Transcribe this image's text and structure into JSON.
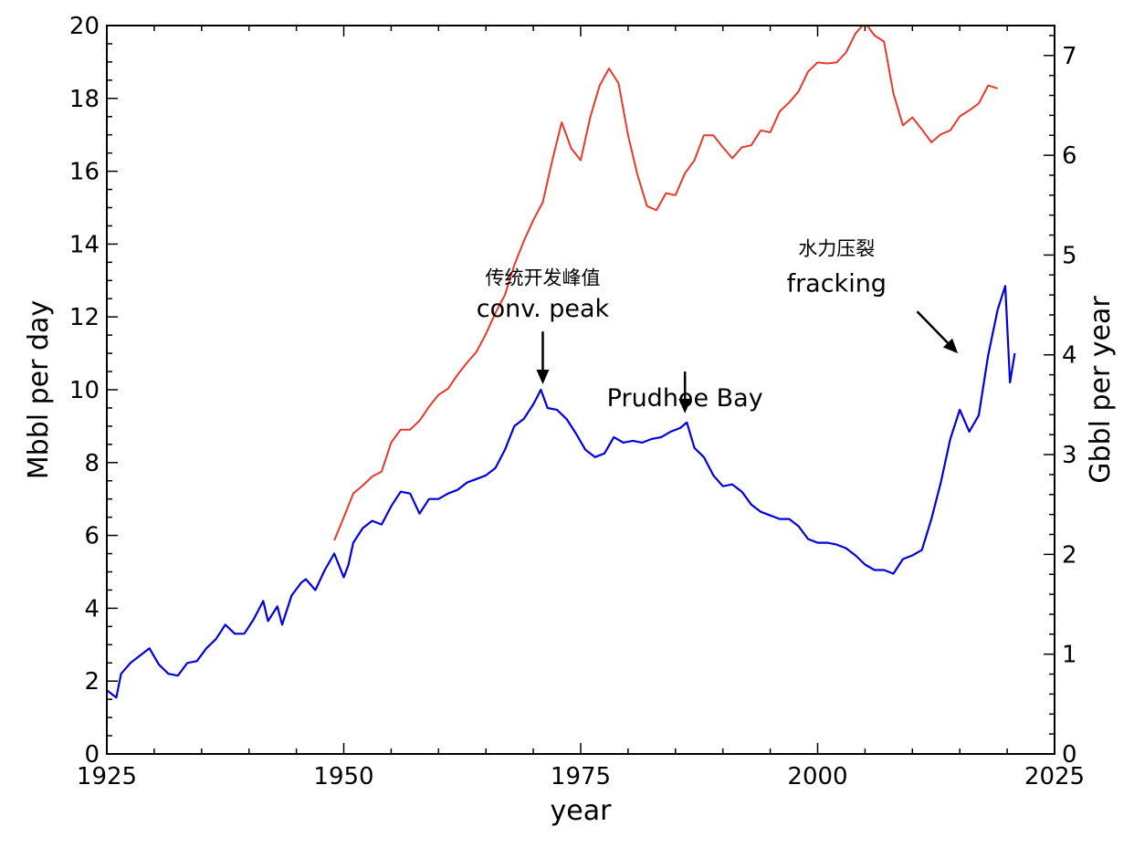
{
  "chart_data": {
    "type": "line",
    "title": "",
    "xlabel": "year",
    "ylabel_left": "Mbbl per day",
    "ylabel_right": "Gbbl per year",
    "xlim": [
      1925,
      2025
    ],
    "ylim_left": [
      0,
      20
    ],
    "ylim_right": [
      0,
      7.3
    ],
    "x_ticks": [
      1925,
      1950,
      1975,
      2000,
      2025
    ],
    "y_ticks_left": [
      0,
      2,
      4,
      6,
      8,
      10,
      12,
      14,
      16,
      18,
      20
    ],
    "y_ticks_right": [
      0,
      1,
      2,
      3,
      4,
      5,
      6,
      7
    ],
    "grid": false,
    "series": [
      {
        "axis": "left",
        "color": "#0000dd",
        "points": [
          [
            1925,
            1.75
          ],
          [
            1926,
            1.55
          ],
          [
            1926.5,
            2.2
          ],
          [
            1927.5,
            2.5
          ],
          [
            1928.5,
            2.7
          ],
          [
            1929.5,
            2.9
          ],
          [
            1930.5,
            2.45
          ],
          [
            1931.5,
            2.2
          ],
          [
            1932.5,
            2.15
          ],
          [
            1933.5,
            2.5
          ],
          [
            1934.5,
            2.55
          ],
          [
            1935.5,
            2.9
          ],
          [
            1936.5,
            3.15
          ],
          [
            1937.5,
            3.55
          ],
          [
            1938.5,
            3.3
          ],
          [
            1939.5,
            3.3
          ],
          [
            1940,
            3.5
          ],
          [
            1940.5,
            3.7
          ],
          [
            1941.5,
            4.2
          ],
          [
            1942,
            3.65
          ],
          [
            1943,
            4.05
          ],
          [
            1943.5,
            3.55
          ],
          [
            1944.5,
            4.35
          ],
          [
            1945.5,
            4.7
          ],
          [
            1946,
            4.8
          ],
          [
            1947,
            4.5
          ],
          [
            1948,
            5.05
          ],
          [
            1949,
            5.5
          ],
          [
            1950,
            4.85
          ],
          [
            1950.5,
            5.2
          ],
          [
            1951,
            5.8
          ],
          [
            1952,
            6.2
          ],
          [
            1953,
            6.4
          ],
          [
            1954,
            6.3
          ],
          [
            1955,
            6.8
          ],
          [
            1956,
            7.2
          ],
          [
            1957,
            7.15
          ],
          [
            1958,
            6.6
          ],
          [
            1959,
            7.0
          ],
          [
            1960,
            7.0
          ],
          [
            1961,
            7.15
          ],
          [
            1962,
            7.25
          ],
          [
            1963,
            7.45
          ],
          [
            1964,
            7.55
          ],
          [
            1965,
            7.65
          ],
          [
            1966,
            7.85
          ],
          [
            1967,
            8.35
          ],
          [
            1968,
            9.0
          ],
          [
            1969,
            9.2
          ],
          [
            1970,
            9.6
          ],
          [
            1970.8,
            10.0
          ],
          [
            1971.5,
            9.5
          ],
          [
            1972.5,
            9.45
          ],
          [
            1973.5,
            9.2
          ],
          [
            1974.5,
            8.8
          ],
          [
            1975.5,
            8.35
          ],
          [
            1976.5,
            8.15
          ],
          [
            1977.5,
            8.25
          ],
          [
            1978.5,
            8.7
          ],
          [
            1979.5,
            8.55
          ],
          [
            1980.5,
            8.6
          ],
          [
            1981.5,
            8.55
          ],
          [
            1982.5,
            8.65
          ],
          [
            1983.5,
            8.7
          ],
          [
            1984.5,
            8.85
          ],
          [
            1985.5,
            8.95
          ],
          [
            1986.2,
            9.1
          ],
          [
            1987,
            8.4
          ],
          [
            1988,
            8.15
          ],
          [
            1989,
            7.65
          ],
          [
            1990,
            7.35
          ],
          [
            1991,
            7.4
          ],
          [
            1992,
            7.2
          ],
          [
            1993,
            6.85
          ],
          [
            1994,
            6.65
          ],
          [
            1995,
            6.55
          ],
          [
            1996,
            6.45
          ],
          [
            1997,
            6.45
          ],
          [
            1998,
            6.25
          ],
          [
            1999,
            5.9
          ],
          [
            2000,
            5.8
          ],
          [
            2001,
            5.8
          ],
          [
            2002,
            5.75
          ],
          [
            2003,
            5.65
          ],
          [
            2004,
            5.45
          ],
          [
            2005,
            5.2
          ],
          [
            2006,
            5.05
          ],
          [
            2007,
            5.05
          ],
          [
            2008,
            4.95
          ],
          [
            2009,
            5.35
          ],
          [
            2010,
            5.45
          ],
          [
            2011,
            5.6
          ],
          [
            2012,
            6.45
          ],
          [
            2013,
            7.45
          ],
          [
            2014,
            8.65
          ],
          [
            2015,
            9.45
          ],
          [
            2016,
            8.85
          ],
          [
            2017,
            9.3
          ],
          [
            2018,
            10.95
          ],
          [
            2019,
            12.2
          ],
          [
            2019.8,
            12.85
          ],
          [
            2020.3,
            10.2
          ],
          [
            2020.8,
            11.0
          ]
        ]
      },
      {
        "axis": "right",
        "color": "#e8392a",
        "points": [
          [
            1949,
            2.14
          ],
          [
            1950,
            2.37
          ],
          [
            1951,
            2.61
          ],
          [
            1952,
            2.69
          ],
          [
            1953,
            2.78
          ],
          [
            1954,
            2.83
          ],
          [
            1955,
            3.12
          ],
          [
            1956,
            3.25
          ],
          [
            1957,
            3.25
          ],
          [
            1958,
            3.34
          ],
          [
            1959,
            3.48
          ],
          [
            1960,
            3.6
          ],
          [
            1961,
            3.66
          ],
          [
            1962,
            3.8
          ],
          [
            1963,
            3.92
          ],
          [
            1964,
            4.03
          ],
          [
            1965,
            4.21
          ],
          [
            1966,
            4.42
          ],
          [
            1967,
            4.6
          ],
          [
            1968,
            4.9
          ],
          [
            1969,
            5.14
          ],
          [
            1970,
            5.35
          ],
          [
            1971,
            5.53
          ],
          [
            1972,
            5.95
          ],
          [
            1973,
            6.33
          ],
          [
            1974,
            6.07
          ],
          [
            1975,
            5.95
          ],
          [
            1976,
            6.38
          ],
          [
            1977,
            6.7
          ],
          [
            1978,
            6.87
          ],
          [
            1979,
            6.72
          ],
          [
            1980,
            6.2
          ],
          [
            1981,
            5.8
          ],
          [
            1982,
            5.49
          ],
          [
            1983,
            5.45
          ],
          [
            1984,
            5.62
          ],
          [
            1985,
            5.6
          ],
          [
            1986,
            5.82
          ],
          [
            1987,
            5.95
          ],
          [
            1988,
            6.2
          ],
          [
            1989,
            6.2
          ],
          [
            1990,
            6.08
          ],
          [
            1991,
            5.97
          ],
          [
            1992,
            6.08
          ],
          [
            1993,
            6.1
          ],
          [
            1994,
            6.25
          ],
          [
            1995,
            6.23
          ],
          [
            1996,
            6.44
          ],
          [
            1997,
            6.53
          ],
          [
            1998,
            6.64
          ],
          [
            1999,
            6.84
          ],
          [
            2000,
            6.93
          ],
          [
            2001,
            6.92
          ],
          [
            2002,
            6.93
          ],
          [
            2003,
            7.03
          ],
          [
            2004,
            7.22
          ],
          [
            2005,
            7.33
          ],
          [
            2006,
            7.2
          ],
          [
            2007,
            7.14
          ],
          [
            2008,
            6.62
          ],
          [
            2009,
            6.3
          ],
          [
            2010,
            6.38
          ],
          [
            2011,
            6.26
          ],
          [
            2012,
            6.13
          ],
          [
            2013,
            6.21
          ],
          [
            2014,
            6.25
          ],
          [
            2015,
            6.39
          ],
          [
            2016,
            6.45
          ],
          [
            2017,
            6.52
          ],
          [
            2018,
            6.7
          ],
          [
            2019,
            6.67
          ]
        ]
      }
    ],
    "annotations": [
      {
        "text": "传统开发峰值",
        "x": 1971,
        "y": 12.9,
        "lang": "cn"
      },
      {
        "text": "conv. peak",
        "x": 1971,
        "y": 12.0,
        "lang": "en"
      },
      {
        "text": "Prudhoe Bay",
        "x": 1986,
        "y": 9.55,
        "lang": "en"
      },
      {
        "text": "水力压裂",
        "x": 2002,
        "y": 13.7,
        "lang": "cn"
      },
      {
        "text": "fracking",
        "x": 2002,
        "y": 12.7,
        "lang": "en"
      }
    ],
    "arrows": [
      {
        "x1": 1971,
        "y1": 11.6,
        "x2": 1971,
        "y2": 10.15
      },
      {
        "x1": 1986,
        "y1": 10.5,
        "x2": 1986,
        "y2": 9.35
      },
      {
        "x1": 2010.5,
        "y1": 12.15,
        "x2": 2014.8,
        "y2": 11.0
      }
    ]
  }
}
